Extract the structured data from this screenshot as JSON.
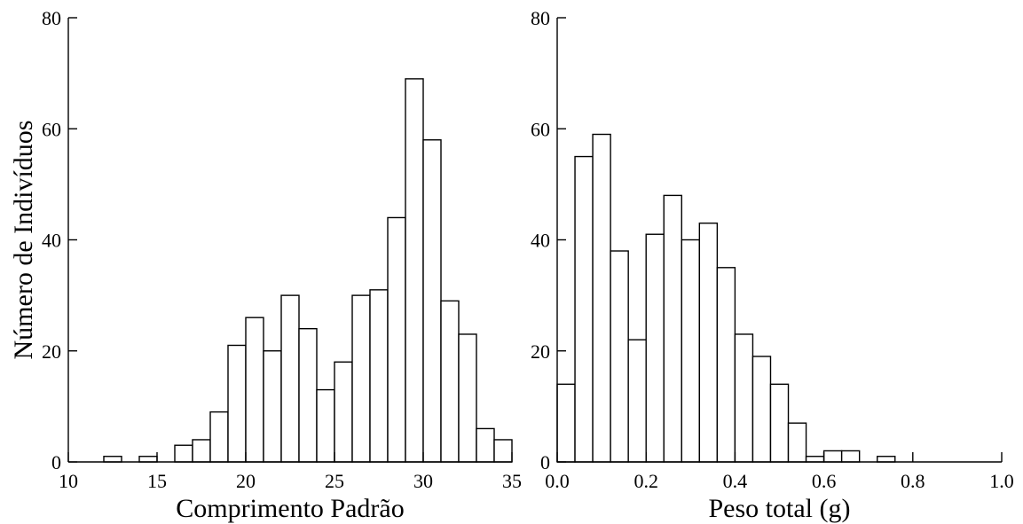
{
  "chart_data": [
    {
      "type": "bar",
      "title": "",
      "xlabel": "Comprimento Padrão",
      "ylabel": "Número de Indivíduos",
      "xlim": [
        10,
        35
      ],
      "ylim": [
        0,
        80
      ],
      "x_ticks": [
        "10",
        "15",
        "20",
        "25",
        "30",
        "35"
      ],
      "y_ticks": [
        "0",
        "20",
        "40",
        "60",
        "80"
      ],
      "grid": false,
      "bin_width": 1,
      "bins": [
        {
          "x": 12,
          "value": 1
        },
        {
          "x": 14,
          "value": 1
        },
        {
          "x": 16,
          "value": 3
        },
        {
          "x": 17,
          "value": 4
        },
        {
          "x": 18,
          "value": 9
        },
        {
          "x": 19,
          "value": 21
        },
        {
          "x": 20,
          "value": 26
        },
        {
          "x": 21,
          "value": 20
        },
        {
          "x": 22,
          "value": 30
        },
        {
          "x": 23,
          "value": 24
        },
        {
          "x": 24,
          "value": 13
        },
        {
          "x": 25,
          "value": 18
        },
        {
          "x": 26,
          "value": 30
        },
        {
          "x": 27,
          "value": 31
        },
        {
          "x": 28,
          "value": 44
        },
        {
          "x": 29,
          "value": 69
        },
        {
          "x": 30,
          "value": 58
        },
        {
          "x": 31,
          "value": 29
        },
        {
          "x": 32,
          "value": 23
        },
        {
          "x": 33,
          "value": 6
        },
        {
          "x": 34,
          "value": 4
        }
      ]
    },
    {
      "type": "bar",
      "title": "",
      "xlabel": "Peso total (g)",
      "ylabel": "",
      "xlim": [
        0.0,
        1.0
      ],
      "ylim": [
        0,
        80
      ],
      "x_ticks": [
        "0.0",
        "0.2",
        "0.4",
        "0.6",
        "0.8",
        "1.0"
      ],
      "y_ticks": [
        "0",
        "20",
        "40",
        "60",
        "80"
      ],
      "grid": false,
      "bin_width": 0.04,
      "bins": [
        {
          "x": 0.0,
          "value": 14
        },
        {
          "x": 0.04,
          "value": 55
        },
        {
          "x": 0.08,
          "value": 59
        },
        {
          "x": 0.12,
          "value": 38
        },
        {
          "x": 0.16,
          "value": 22
        },
        {
          "x": 0.2,
          "value": 41
        },
        {
          "x": 0.24,
          "value": 48
        },
        {
          "x": 0.28,
          "value": 40
        },
        {
          "x": 0.32,
          "value": 43
        },
        {
          "x": 0.36,
          "value": 35
        },
        {
          "x": 0.4,
          "value": 23
        },
        {
          "x": 0.44,
          "value": 19
        },
        {
          "x": 0.48,
          "value": 14
        },
        {
          "x": 0.52,
          "value": 7
        },
        {
          "x": 0.56,
          "value": 1
        },
        {
          "x": 0.6,
          "value": 2
        },
        {
          "x": 0.64,
          "value": 2
        },
        {
          "x": 0.72,
          "value": 1
        }
      ]
    }
  ]
}
